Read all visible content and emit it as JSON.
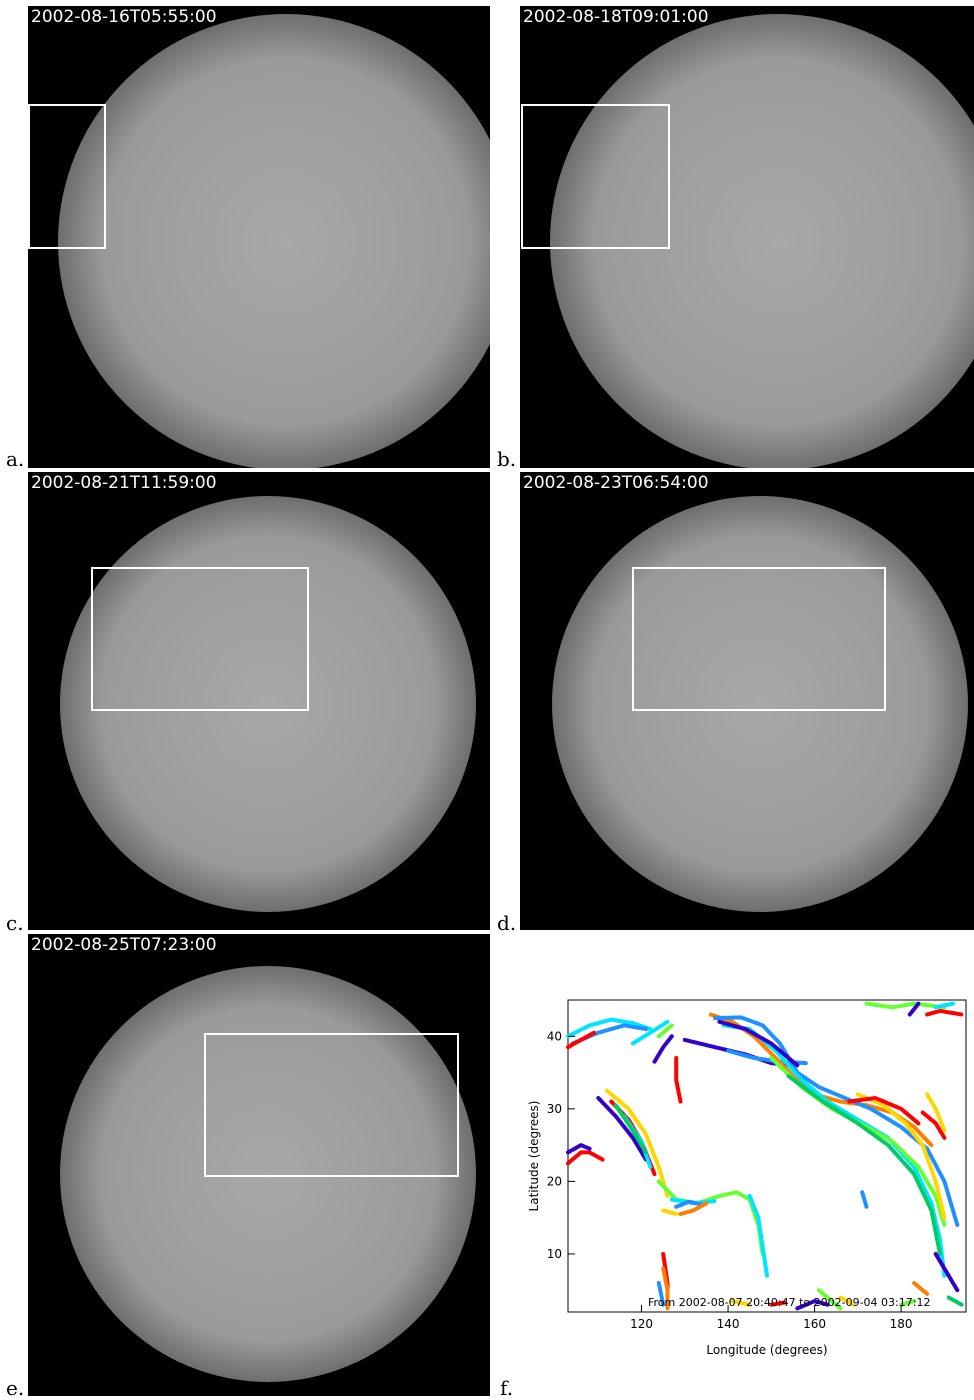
{
  "panels": [
    {
      "id": "a",
      "label": "a.",
      "timestamp": "2002-08-16T05:55:00"
    },
    {
      "id": "b",
      "label": "b.",
      "timestamp": "2002-08-18T09:01:00"
    },
    {
      "id": "c",
      "label": "c.",
      "timestamp": "2002-08-21T11:59:00"
    },
    {
      "id": "d",
      "label": "d.",
      "timestamp": "2002-08-23T06:54:00"
    },
    {
      "id": "e",
      "label": "e.",
      "timestamp": "2002-08-25T07:23:00"
    },
    {
      "id": "f",
      "label": "f."
    }
  ],
  "colors": {
    "background": "#000000",
    "disk": "#9a9a9a",
    "box": "#ffffff",
    "palette": [
      "#ff0000",
      "#ff7f00",
      "#ffd700",
      "#66ff33",
      "#00cc66",
      "#00e5ff",
      "#1e90ff",
      "#3300cc",
      "#6a0dad"
    ]
  },
  "chart_data": {
    "type": "scatter",
    "xlabel": "Longitude (degrees)",
    "ylabel": "Latitude (degrees)",
    "xlim": [
      103,
      195
    ],
    "ylim": [
      2,
      45
    ],
    "xticks": [
      120,
      140,
      160,
      180
    ],
    "yticks": [
      10,
      20,
      30,
      40
    ],
    "annotation": "From 2002-08-07 20:40:47 to 2002-09-04 03:17:12",
    "grid": false,
    "series": [
      {
        "color": "#00e5ff",
        "points": [
          [
            103,
            40
          ],
          [
            108,
            41.5
          ],
          [
            113,
            42.3
          ],
          [
            118,
            41.8
          ],
          [
            122,
            41
          ]
        ]
      },
      {
        "color": "#1e90ff",
        "points": [
          [
            104,
            39
          ],
          [
            110,
            40.5
          ],
          [
            116,
            41.5
          ],
          [
            121,
            41
          ]
        ]
      },
      {
        "color": "#00e5ff",
        "points": [
          [
            118,
            39
          ],
          [
            122,
            40.5
          ],
          [
            126,
            42
          ]
        ]
      },
      {
        "color": "#ff0000",
        "points": [
          [
            103,
            38.5
          ],
          [
            106,
            39.5
          ],
          [
            109,
            40.5
          ]
        ]
      },
      {
        "color": "#3300cc",
        "points": [
          [
            123,
            36.5
          ],
          [
            125,
            38.5
          ],
          [
            127,
            40
          ]
        ]
      },
      {
        "color": "#66ff33",
        "points": [
          [
            124,
            40
          ],
          [
            127,
            41.5
          ]
        ]
      },
      {
        "color": "#3300cc",
        "points": [
          [
            130,
            39.5
          ],
          [
            137,
            38.5
          ],
          [
            144,
            37.5
          ],
          [
            150,
            36.3
          ],
          [
            155,
            36
          ]
        ]
      },
      {
        "color": "#1e90ff",
        "points": [
          [
            140,
            38
          ],
          [
            146,
            37
          ],
          [
            152,
            36.5
          ],
          [
            158,
            36.3
          ]
        ]
      },
      {
        "color": "#ff7f00",
        "points": [
          [
            136,
            43
          ],
          [
            141,
            42
          ],
          [
            146,
            40
          ],
          [
            151,
            37
          ],
          [
            155,
            34.5
          ],
          [
            160,
            32
          ],
          [
            166,
            31
          ],
          [
            172,
            30.5
          ],
          [
            178,
            29.5
          ],
          [
            183,
            27.5
          ],
          [
            187,
            25
          ]
        ]
      },
      {
        "color": "#1e90ff",
        "points": [
          [
            137,
            42.5
          ],
          [
            143,
            42.6
          ],
          [
            148,
            41.5
          ],
          [
            152,
            39
          ],
          [
            156,
            35
          ],
          [
            161,
            33
          ],
          [
            167,
            31.5
          ],
          [
            173,
            30
          ],
          [
            180,
            27.5
          ],
          [
            186,
            24.5
          ],
          [
            190,
            20
          ],
          [
            193,
            14
          ]
        ]
      },
      {
        "color": "#00e5ff",
        "points": [
          [
            139,
            41.5
          ],
          [
            145,
            41
          ],
          [
            151,
            38
          ],
          [
            157,
            34
          ],
          [
            163,
            31
          ],
          [
            170,
            28.5
          ],
          [
            177,
            26
          ],
          [
            183,
            22
          ],
          [
            187,
            17
          ],
          [
            189,
            12
          ],
          [
            190,
            7
          ]
        ]
      },
      {
        "color": "#66ff33",
        "points": [
          [
            150,
            37
          ],
          [
            157,
            33
          ],
          [
            164,
            30
          ],
          [
            172,
            27.5
          ],
          [
            178,
            25.5
          ],
          [
            184,
            22
          ],
          [
            188,
            18
          ],
          [
            190,
            14
          ]
        ]
      },
      {
        "color": "#00cc66",
        "points": [
          [
            154,
            34.5
          ],
          [
            162,
            31
          ],
          [
            170,
            28
          ],
          [
            177,
            25
          ],
          [
            183,
            21
          ],
          [
            187,
            16
          ],
          [
            189,
            10
          ]
        ]
      },
      {
        "color": "#3300cc",
        "points": [
          [
            138,
            42
          ],
          [
            144,
            41
          ],
          [
            150,
            39
          ],
          [
            156,
            36
          ]
        ]
      },
      {
        "color": "#ffd700",
        "points": [
          [
            170,
            32
          ],
          [
            176,
            30.5
          ],
          [
            181,
            28
          ],
          [
            185,
            25
          ],
          [
            188,
            20
          ],
          [
            190,
            15
          ]
        ]
      },
      {
        "color": "#ff0000",
        "points": [
          [
            168,
            31
          ],
          [
            174,
            31.5
          ],
          [
            180,
            30
          ],
          [
            184,
            28
          ]
        ]
      },
      {
        "color": "#ff0000",
        "points": [
          [
            128,
            37
          ],
          [
            128,
            34
          ],
          [
            129,
            31
          ]
        ]
      },
      {
        "color": "#66ff33",
        "points": [
          [
            172,
            44.5
          ],
          [
            178,
            44
          ],
          [
            183,
            44.5
          ],
          [
            190,
            44
          ]
        ]
      },
      {
        "color": "#3300cc",
        "points": [
          [
            182,
            43
          ],
          [
            184,
            44.5
          ]
        ]
      },
      {
        "color": "#ff0000",
        "points": [
          [
            186,
            43
          ],
          [
            189,
            43.5
          ],
          [
            194,
            43
          ]
        ]
      },
      {
        "color": "#00e5ff",
        "points": [
          [
            188,
            44
          ],
          [
            192,
            44.5
          ]
        ]
      },
      {
        "color": "#ff0000",
        "points": [
          [
            185,
            29.5
          ],
          [
            188,
            28
          ],
          [
            190,
            26
          ]
        ]
      },
      {
        "color": "#ffd700",
        "points": [
          [
            186,
            32
          ],
          [
            188,
            30
          ],
          [
            190,
            27
          ]
        ]
      },
      {
        "color": "#ffd700",
        "points": [
          [
            112,
            32.5
          ],
          [
            117,
            30
          ],
          [
            121,
            26.5
          ],
          [
            124,
            22
          ],
          [
            126,
            18
          ]
        ]
      },
      {
        "color": "#3300cc",
        "points": [
          [
            110,
            31.5
          ],
          [
            114,
            29
          ],
          [
            118,
            26
          ],
          [
            121,
            23
          ]
        ]
      },
      {
        "color": "#ff0000",
        "points": [
          [
            113,
            31
          ],
          [
            117,
            28.5
          ],
          [
            120,
            25.5
          ],
          [
            123,
            21
          ]
        ]
      },
      {
        "color": "#00e5ff",
        "points": [
          [
            116,
            29
          ],
          [
            120,
            25.5
          ],
          [
            122,
            22
          ]
        ]
      },
      {
        "color": "#00cc66",
        "points": [
          [
            114,
            30.5
          ],
          [
            118,
            27
          ],
          [
            121,
            24
          ]
        ]
      },
      {
        "color": "#ff0000",
        "points": [
          [
            103,
            22.5
          ],
          [
            106,
            24
          ],
          [
            108,
            24
          ],
          [
            111,
            23
          ]
        ]
      },
      {
        "color": "#3300cc",
        "points": [
          [
            103,
            24
          ],
          [
            106,
            25
          ],
          [
            108,
            24.5
          ]
        ]
      },
      {
        "color": "#66ff33",
        "points": [
          [
            124,
            20
          ],
          [
            128,
            17.5
          ],
          [
            133,
            17
          ],
          [
            138,
            18
          ],
          [
            142,
            18.5
          ],
          [
            145,
            17.5
          ],
          [
            147,
            14
          ],
          [
            148,
            10
          ]
        ]
      },
      {
        "color": "#00e5ff",
        "points": [
          [
            127,
            17.5
          ],
          [
            132,
            17
          ],
          [
            137,
            17.3
          ]
        ]
      },
      {
        "color": "#1e90ff",
        "points": [
          [
            128,
            16.5
          ],
          [
            131,
            17.2
          ],
          [
            134,
            16.8
          ]
        ]
      },
      {
        "color": "#ff7f00",
        "points": [
          [
            129,
            15.5
          ],
          [
            132,
            16
          ],
          [
            135,
            17
          ]
        ]
      },
      {
        "color": "#ffd700",
        "points": [
          [
            125,
            16
          ],
          [
            128,
            15.5
          ]
        ]
      },
      {
        "color": "#00e5ff",
        "points": [
          [
            145,
            18
          ],
          [
            147,
            15
          ],
          [
            148,
            11
          ],
          [
            149,
            7
          ]
        ]
      },
      {
        "color": "#1e90ff",
        "points": [
          [
            171,
            18.5
          ],
          [
            172,
            16.5
          ]
        ]
      },
      {
        "color": "#ff7f00",
        "points": [
          [
            183,
            6
          ],
          [
            186,
            4.5
          ]
        ]
      },
      {
        "color": "#ff0000",
        "points": [
          [
            125,
            10
          ],
          [
            126,
            6
          ],
          [
            126,
            3
          ]
        ]
      },
      {
        "color": "#ff7f00",
        "points": [
          [
            125,
            8
          ],
          [
            126,
            5
          ],
          [
            126,
            2.5
          ]
        ]
      },
      {
        "color": "#1e90ff",
        "points": [
          [
            124,
            6
          ],
          [
            125,
            3
          ]
        ]
      },
      {
        "color": "#3300cc",
        "points": [
          [
            156,
            2.5
          ],
          [
            160,
            3.5
          ],
          [
            163,
            3
          ]
        ]
      },
      {
        "color": "#66ff33",
        "points": [
          [
            161,
            5
          ],
          [
            164,
            3.5
          ],
          [
            166,
            2.5
          ]
        ]
      },
      {
        "color": "#ff0000",
        "points": [
          [
            150,
            3
          ],
          [
            153,
            3.3
          ]
        ]
      },
      {
        "color": "#ffd700",
        "points": [
          [
            141,
            3.5
          ],
          [
            145,
            3
          ]
        ]
      },
      {
        "color": "#3300cc",
        "points": [
          [
            188,
            10
          ],
          [
            191,
            7
          ],
          [
            193,
            5
          ]
        ]
      },
      {
        "color": "#00cc66",
        "points": [
          [
            191,
            4
          ],
          [
            194,
            3
          ]
        ]
      },
      {
        "color": "#66ff33",
        "points": [
          [
            180,
            3
          ],
          [
            183,
            3.5
          ]
        ]
      },
      {
        "color": "#ffd700",
        "points": [
          [
            166,
            4
          ],
          [
            169,
            3
          ]
        ]
      }
    ]
  }
}
